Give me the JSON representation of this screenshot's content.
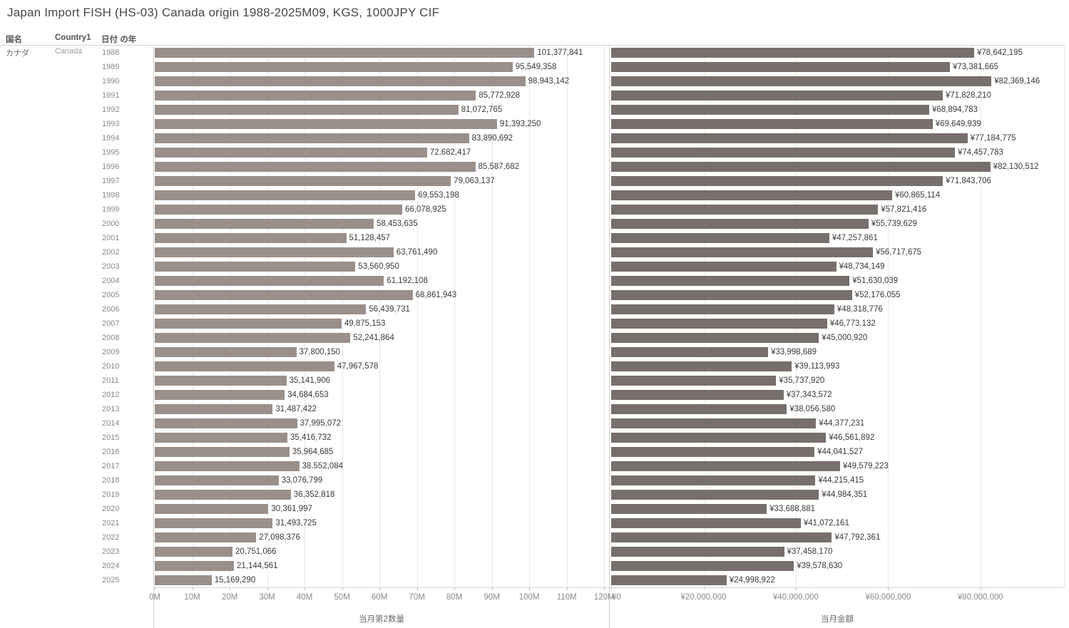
{
  "title": "Japan Import FISH (HS-03) Canada origin 1988-2025M09, KGS, 1000JPY CIF",
  "columns": {
    "country_jp": "国名",
    "country_en": "Country1",
    "year": "日付 の年"
  },
  "row_header": {
    "country_jp": "カナダ",
    "country_en": "Canada"
  },
  "chart_data": {
    "type": "bar",
    "orientation": "horizontal",
    "categories": [
      "1988",
      "1989",
      "1990",
      "1991",
      "1992",
      "1993",
      "1994",
      "1995",
      "1996",
      "1997",
      "1998",
      "1999",
      "2000",
      "2001",
      "2002",
      "2003",
      "2004",
      "2005",
      "2006",
      "2007",
      "2008",
      "2009",
      "2010",
      "2011",
      "2012",
      "2013",
      "2014",
      "2015",
      "2016",
      "2017",
      "2018",
      "2019",
      "2020",
      "2021",
      "2022",
      "2023",
      "2024",
      "2025"
    ],
    "series": [
      {
        "name": "当月第2数量",
        "value_prefix": "",
        "color": "#9a8f89",
        "xlim": [
          0,
          121300000
        ],
        "tick_values": [
          0,
          10000000,
          20000000,
          30000000,
          40000000,
          50000000,
          60000000,
          70000000,
          80000000,
          90000000,
          100000000,
          110000000,
          120000000
        ],
        "tick_labels": [
          "0M",
          "10M",
          "20M",
          "30M",
          "40M",
          "50M",
          "60M",
          "70M",
          "80M",
          "90M",
          "100M",
          "110M",
          "120M"
        ],
        "values": [
          101377841,
          95549358,
          98943142,
          85772928,
          81072765,
          91393250,
          83890692,
          72682417,
          85587682,
          79063137,
          69553198,
          66078925,
          58453635,
          51128457,
          63761490,
          53560950,
          61192108,
          68861943,
          56439731,
          49875153,
          52241864,
          37800150,
          47967578,
          35141906,
          34684653,
          31487422,
          37995072,
          35416732,
          35964685,
          38552084,
          33076799,
          36352818,
          30361997,
          31493725,
          27098376,
          20751066,
          21144561,
          15169290
        ]
      },
      {
        "name": "当月金額",
        "value_prefix": "¥",
        "color": "#776f6b",
        "xlim": [
          0,
          98100000
        ],
        "tick_values": [
          0,
          20000000,
          40000000,
          60000000,
          80000000
        ],
        "tick_labels": [
          "¥0",
          "¥20,000,000",
          "¥40,000,000",
          "¥60,000,000",
          "¥80,000,000"
        ],
        "values": [
          78642195,
          73381665,
          82369146,
          71828210,
          68894783,
          69649939,
          77184775,
          74457783,
          82130512,
          71843706,
          60865114,
          57821416,
          55739629,
          47257861,
          56717675,
          48734149,
          51630039,
          52176055,
          48318776,
          46773132,
          45000920,
          33998689,
          39113993,
          35737920,
          37343572,
          38056580,
          44377231,
          46561892,
          44041527,
          49579223,
          44215415,
          44984351,
          33688881,
          41072161,
          47792361,
          37458170,
          39578630,
          24998922
        ]
      }
    ],
    "grid": true,
    "legend": "none"
  }
}
